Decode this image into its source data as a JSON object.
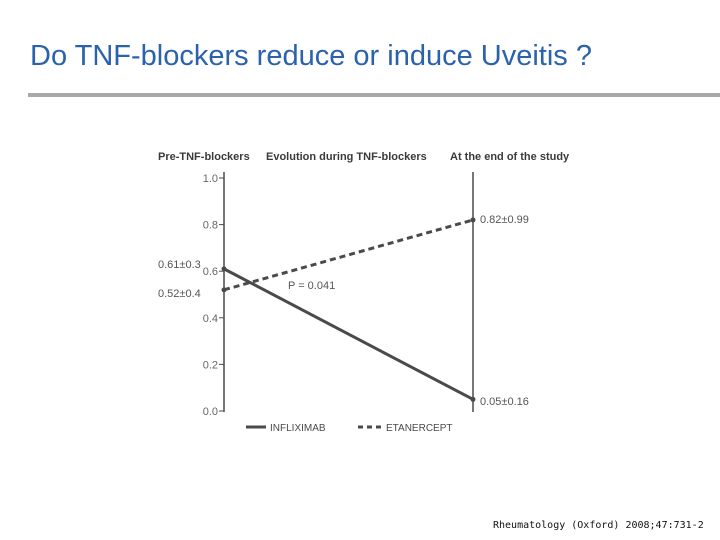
{
  "slide": {
    "title": "Do TNF-blockers reduce or induce Uveitis ?",
    "citation": "Rheumatology (Oxford) 2008;47:731-2"
  },
  "chart_data": {
    "type": "line",
    "title": "",
    "xlabel": "",
    "ylabel": "",
    "categories": [
      "Pre-TNF-blockers",
      "At the end of the study"
    ],
    "middle_heading": "Evolution during TNF-blockers",
    "series": [
      {
        "name": "INFLIXIMAB",
        "values": [
          0.61,
          0.05
        ],
        "value_labels": [
          "0.61±0.3",
          "0.05±0.16"
        ],
        "style": "solid",
        "color": "#4a4a4a"
      },
      {
        "name": "ETANERCEPT",
        "values": [
          0.52,
          0.82
        ],
        "value_labels": [
          "0.52±0.4",
          "0.82±0.99"
        ],
        "style": "dashed",
        "color": "#4a4a4a"
      }
    ],
    "yticks": [
      0.0,
      0.2,
      0.4,
      0.6,
      0.8,
      1.0
    ],
    "ytick_labels": [
      "0.0",
      "0.2",
      "0.4",
      "0.6",
      "0.8",
      "1.0"
    ],
    "ylim": [
      0,
      1.0
    ],
    "annotation": "P = 0.041",
    "legend_position": "bottom",
    "grid": false
  }
}
